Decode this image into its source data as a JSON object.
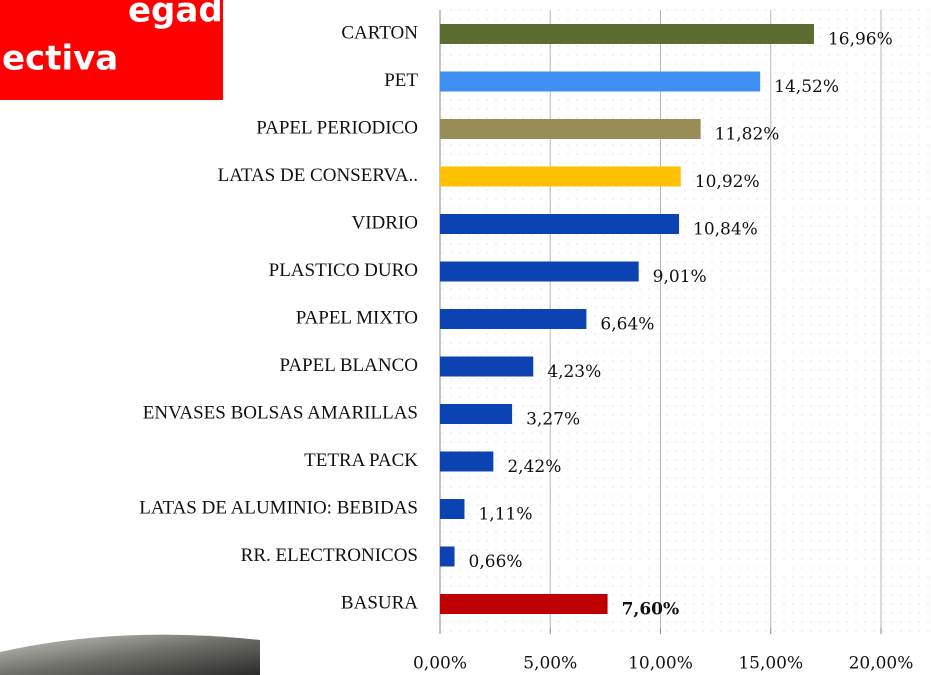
{
  "chart_data": {
    "type": "barh",
    "annotations": [
      "egado",
      "ectiva"
    ],
    "categories": [
      "CARTON",
      "PET",
      "PAPEL PERIODICO",
      "LATAS DE CONSERVA..",
      "VIDRIO",
      "PLASTICO DURO",
      "PAPEL MIXTO",
      "PAPEL BLANCO",
      "ENVASES BOLSAS AMARILLAS",
      "TETRA PACK",
      "LATAS DE ALUMINIO: BEBIDAS",
      "RR. ELECTRONICOS",
      "BASURA"
    ],
    "values": [
      16.96,
      14.52,
      11.82,
      10.92,
      10.84,
      9.01,
      6.64,
      4.23,
      3.27,
      2.42,
      1.11,
      0.66,
      7.6
    ],
    "value_labels": [
      "16,96%",
      "14,52%",
      "11,82%",
      "10,92%",
      "10,84%",
      "9,01%",
      "6,64%",
      "4,23%",
      "3,27%",
      "2,42%",
      "1,11%",
      "0,66%",
      "7,60%"
    ],
    "colors": [
      "#5b6d2f",
      "#3f8ef2",
      "#978d57",
      "#ffc000",
      "#0b43b3",
      "#0b43b3",
      "#0b43b3",
      "#0b43b3",
      "#0b43b3",
      "#0b43b3",
      "#0b43b3",
      "#0b43b3",
      "#c00000"
    ],
    "value_label_colors": [
      "#111111",
      "#111111",
      "#111111",
      "#111111",
      "#111111",
      "#111111",
      "#111111",
      "#111111",
      "#111111",
      "#111111",
      "#111111",
      "#111111",
      "#e02020"
    ],
    "xlim": [
      0,
      20
    ],
    "xticks": [
      {
        "value": 0,
        "label": "0,00%"
      },
      {
        "value": 5,
        "label": "5,00%"
      },
      {
        "value": 10,
        "label": "10,00%"
      },
      {
        "value": 15,
        "label": "15,00%"
      },
      {
        "value": 20,
        "label": "20,00%"
      }
    ],
    "grid": true
  }
}
